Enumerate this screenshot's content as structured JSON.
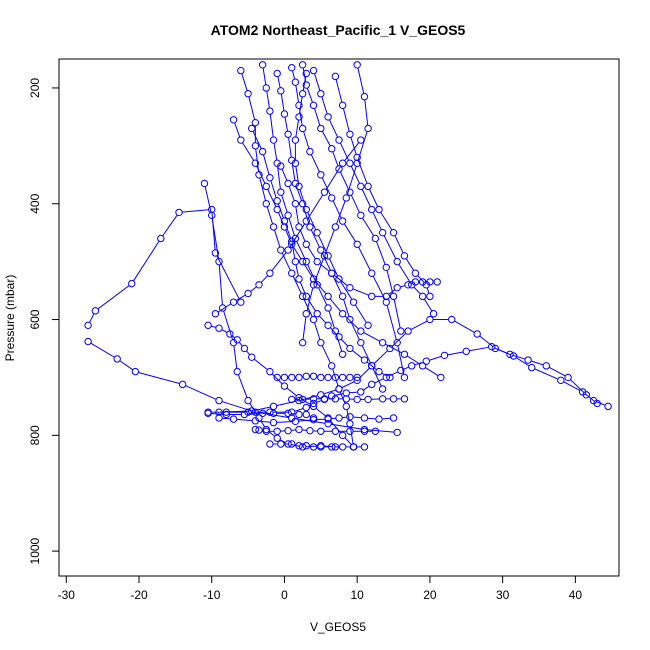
{
  "chart_data": {
    "type": "line",
    "title": "ATOM2 Northeast_Pacific_1 V_GEOS5",
    "xlabel": "V_GEOS5",
    "ylabel": "Pressure (mbar)",
    "xlim": [
      -31,
      46
    ],
    "ylim": [
      1043,
      150
    ],
    "y_inverted": true,
    "x_ticks": [
      -30,
      -20,
      -10,
      0,
      10,
      20,
      30,
      40
    ],
    "y_ticks": [
      200,
      400,
      600,
      800,
      1000
    ],
    "grid": false,
    "legend": "none",
    "line_color": "#0000ff",
    "marker": "open-circle",
    "series": [
      {
        "x": [
          -10.5,
          -8,
          -5,
          -2,
          1,
          3,
          4,
          5.5,
          6.5,
          8.5,
          10.5,
          12,
          14,
          16,
          17.5,
          19.5,
          22,
          25,
          28.5,
          31.5,
          34,
          38,
          41,
          42.5,
          44.5
        ],
        "y": [
          760,
          760,
          760,
          760,
          760,
          752,
          745,
          738,
          732,
          727,
          725,
          712,
          700,
          688,
          680,
          672,
          662,
          655,
          647,
          663,
          683,
          705,
          725,
          740,
          750
        ]
      },
      {
        "x": [
          -9,
          -4.5,
          -1.5,
          2,
          5,
          7.5,
          10,
          12,
          14.5,
          17,
          20,
          23,
          26.5,
          29,
          31,
          33.5,
          36,
          39,
          41.5,
          43
        ],
        "y": [
          760,
          758,
          750,
          740,
          730,
          720,
          705,
          680,
          650,
          620,
          600,
          600,
          625,
          650,
          660,
          670,
          680,
          700,
          730,
          745
        ]
      },
      {
        "x": [
          -27,
          -26,
          -21,
          -17,
          -14.5,
          -10,
          -9.5,
          -6
        ],
        "y": [
          610,
          585,
          538,
          460,
          415,
          410,
          485,
          570
        ]
      },
      {
        "x": [
          -27,
          -23,
          -20.5,
          -14,
          -9,
          -4,
          1,
          6,
          11,
          15.5
        ],
        "y": [
          638,
          668,
          690,
          712,
          740,
          760,
          770,
          780,
          790,
          795
        ]
      },
      {
        "x": [
          -11,
          -10,
          -9,
          -8.5,
          -7,
          -6.5,
          -5,
          -3.5,
          -2.5,
          -1,
          0.5,
          2.5,
          5,
          7
        ],
        "y": [
          365,
          420,
          500,
          580,
          640,
          690,
          740,
          770,
          790,
          805,
          815,
          820,
          818,
          820
        ]
      },
      {
        "x": [
          -10.5,
          -9,
          -7.5,
          -6.5,
          -5.5,
          -4.5,
          -2,
          0,
          2,
          4,
          6,
          8,
          9.5
        ],
        "y": [
          610,
          615,
          625,
          635,
          650,
          665,
          690,
          715,
          735,
          750,
          770,
          800,
          820
        ]
      },
      {
        "x": [
          -9.5,
          -7,
          -5,
          -3.5,
          -2,
          0.5,
          3,
          5.5,
          8,
          10.5
        ],
        "y": [
          590,
          570,
          555,
          540,
          520,
          480,
          430,
          380,
          330,
          290
        ]
      },
      {
        "x": [
          -6,
          -5,
          -4,
          -4,
          -3.5,
          -2.5,
          -1.5,
          -0.5,
          1,
          2.5,
          4,
          5,
          6.5,
          7.5,
          8.5,
          9,
          9.5
        ],
        "y": [
          170,
          210,
          260,
          300,
          350,
          400,
          440,
          480,
          520,
          560,
          600,
          640,
          680,
          720,
          750,
          780,
          820
        ]
      },
      {
        "x": [
          -3,
          -2.5,
          -2,
          -1.5,
          -1,
          -0.5,
          0.5,
          1.5,
          3,
          4.5,
          6,
          7,
          8
        ],
        "y": [
          160,
          200,
          240,
          290,
          330,
          380,
          420,
          460,
          500,
          540,
          580,
          620,
          660
        ]
      },
      {
        "x": [
          -1,
          -0.5,
          0,
          0.5,
          1,
          1.5,
          2.5,
          3.5,
          5,
          6.5,
          8,
          9,
          10.5,
          12,
          13.5
        ],
        "y": [
          175,
          205,
          245,
          280,
          325,
          365,
          400,
          440,
          480,
          520,
          560,
          600,
          640,
          680,
          720
        ]
      },
      {
        "x": [
          1,
          1.5,
          2,
          2.5,
          3.5,
          5,
          6.5,
          8,
          10,
          12,
          14,
          15.5,
          16.5
        ],
        "y": [
          165,
          190,
          230,
          270,
          310,
          350,
          390,
          430,
          470,
          520,
          570,
          640,
          700
        ]
      },
      {
        "x": [
          2.5,
          3,
          4,
          5,
          6.5,
          7.5,
          9,
          10.5,
          12.5,
          14,
          15,
          16
        ],
        "y": [
          160,
          195,
          230,
          270,
          305,
          340,
          380,
          420,
          460,
          510,
          560,
          620
        ]
      },
      {
        "x": [
          4,
          5,
          6,
          7.5,
          9,
          10.5,
          12,
          13.5,
          15.5,
          17.5,
          19,
          20.5
        ],
        "y": [
          170,
          210,
          250,
          290,
          330,
          370,
          410,
          450,
          500,
          540,
          560,
          590
        ]
      },
      {
        "x": [
          7,
          8,
          9,
          10,
          11.5,
          13,
          15,
          16.5,
          18,
          19.5,
          20
        ],
        "y": [
          180,
          230,
          280,
          320,
          370,
          410,
          450,
          490,
          520,
          540,
          560
        ]
      },
      {
        "x": [
          10,
          11,
          11.5,
          10,
          8.5,
          7,
          5.5,
          4,
          3,
          2.5
        ],
        "y": [
          160,
          215,
          270,
          330,
          390,
          440,
          490,
          540,
          590,
          640
        ]
      },
      {
        "x": [
          -7,
          -6,
          -4,
          -2.5,
          -1,
          0,
          1,
          2.5,
          4,
          6,
          8,
          10.5,
          13.5,
          16.5,
          19,
          21.5
        ],
        "y": [
          255,
          290,
          330,
          370,
          410,
          440,
          470,
          500,
          530,
          560,
          590,
          620,
          640,
          660,
          680,
          700
        ]
      },
      {
        "x": [
          -0.5,
          0.5,
          1.5,
          2,
          3,
          4.5,
          6.5,
          9,
          12,
          14,
          15.5,
          17,
          18,
          19,
          20,
          21
        ],
        "y": [
          335,
          365,
          400,
          440,
          470,
          500,
          520,
          545,
          560,
          560,
          545,
          540,
          535,
          535,
          535,
          535
        ]
      },
      {
        "x": [
          -4.5,
          -3,
          -2,
          -1,
          0,
          1,
          1.5,
          2,
          3,
          4.5,
          6,
          7.5,
          9,
          11,
          13,
          14.5
        ],
        "y": [
          270,
          310,
          355,
          395,
          430,
          465,
          500,
          530,
          560,
          590,
          610,
          630,
          650,
          670,
          690,
          700
        ]
      },
      {
        "x": [
          3,
          2.5,
          2,
          1.5,
          1.5,
          2,
          3,
          4.5,
          6,
          7.5,
          9.5,
          11.5
        ],
        "y": [
          175,
          210,
          250,
          290,
          330,
          370,
          410,
          450,
          490,
          530,
          570,
          610
        ]
      },
      {
        "x": [
          -9,
          -7,
          -4,
          -1.5,
          1.5,
          4,
          6,
          7.5,
          9,
          11,
          13,
          15
        ],
        "y": [
          770,
          772,
          775,
          778,
          776,
          773,
          772,
          770,
          768,
          770,
          772,
          770
        ]
      },
      {
        "x": [
          -4,
          -3.5,
          -2.5,
          -1,
          0.5,
          2,
          3.5,
          5,
          7,
          9,
          11,
          12.5
        ],
        "y": [
          790,
          791,
          793,
          793,
          792,
          790,
          792,
          793,
          793,
          793,
          793,
          793
        ]
      },
      {
        "x": [
          1,
          2.5,
          4,
          5.5,
          7,
          8.5,
          10,
          11.5,
          13.5,
          15,
          16.5
        ],
        "y": [
          738,
          738,
          737,
          737,
          737,
          737,
          738,
          738,
          737,
          737,
          737
        ]
      },
      {
        "x": [
          -1,
          0,
          1,
          2,
          3,
          4,
          5,
          6,
          7,
          8,
          9,
          10
        ],
        "y": [
          700,
          700,
          700,
          700,
          698,
          698,
          700,
          700,
          700,
          700,
          700,
          700
        ]
      },
      {
        "x": [
          -10.5,
          -8,
          -5.5,
          -3,
          -1.5,
          0.5,
          2,
          3,
          4
        ],
        "y": [
          762,
          764,
          764,
          762,
          762,
          762,
          764,
          764,
          770
        ]
      },
      {
        "x": [
          -2,
          -0.5,
          1,
          2,
          3,
          4,
          5,
          6.5,
          8,
          9.5,
          11
        ],
        "y": [
          815,
          815,
          815,
          818,
          818,
          820,
          820,
          820,
          820,
          820,
          820
        ]
      }
    ]
  }
}
